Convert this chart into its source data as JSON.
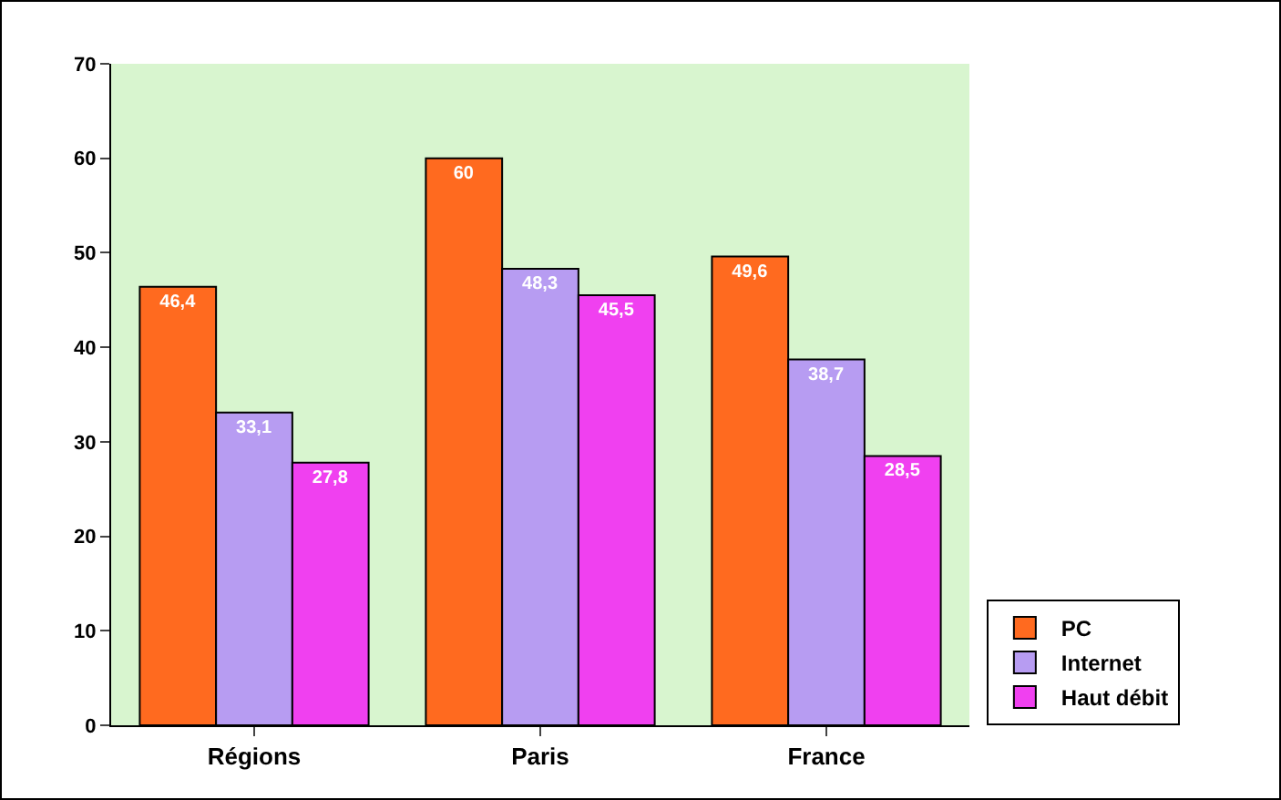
{
  "chart_data": {
    "type": "bar",
    "categories": [
      "Régions",
      "Paris",
      "France"
    ],
    "series": [
      {
        "name": "PC",
        "color": "#ff6a1f",
        "values": [
          46.4,
          60,
          49.6
        ],
        "value_labels": [
          "46,4",
          "60",
          "49,6"
        ]
      },
      {
        "name": "Internet",
        "color": "#b79cf2",
        "values": [
          33.1,
          48.3,
          38.7
        ],
        "value_labels": [
          "33,1",
          "48,3",
          "38,7"
        ]
      },
      {
        "name": "Haut débit",
        "color": "#f040f0",
        "values": [
          27.8,
          45.5,
          28.5
        ],
        "value_labels": [
          "27,8",
          "45,5",
          "28,5"
        ]
      }
    ],
    "ylim": [
      0,
      70
    ],
    "yticks": [
      0,
      10,
      20,
      30,
      40,
      50,
      60,
      70
    ],
    "grid": false,
    "legend": "bottom right"
  }
}
